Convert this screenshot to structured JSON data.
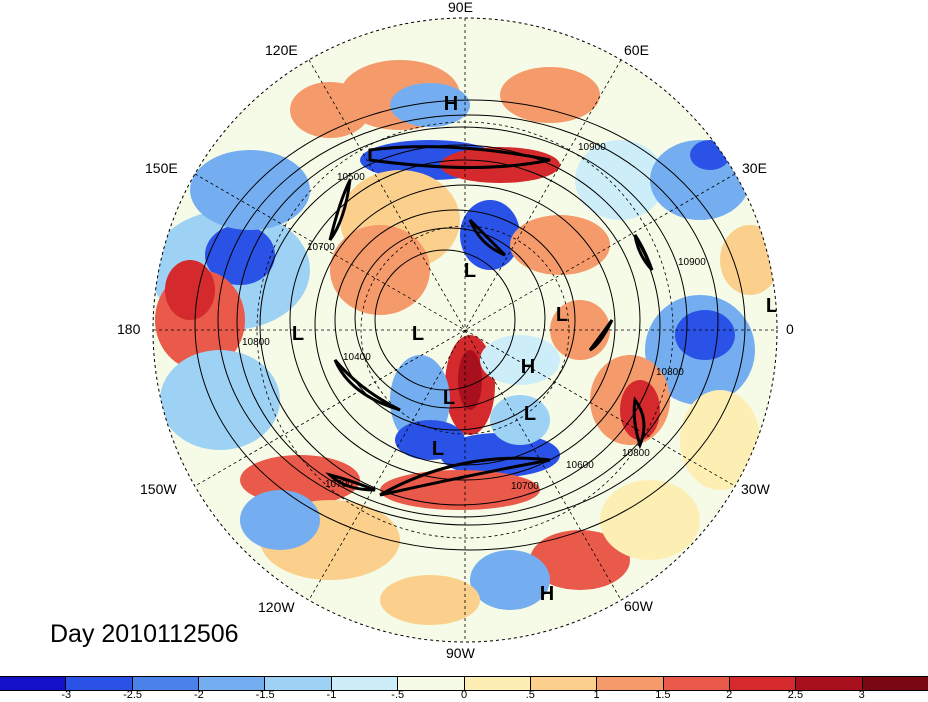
{
  "title": "Day 2010112506",
  "longitude_labels": [
    "90E",
    "60E",
    "30E",
    "0",
    "30W",
    "60W",
    "90W",
    "120W",
    "150W",
    "180",
    "150E",
    "120E"
  ],
  "contour_labels": [
    "10900",
    "10500",
    "10700",
    "10900",
    "10800",
    "10400",
    "10800",
    "10800",
    "10600",
    "10700",
    "10700"
  ],
  "pressure_centers": [
    "H",
    "L",
    "L",
    "L",
    "L",
    "H",
    "L",
    "L",
    "L",
    "L",
    "H"
  ],
  "colorbar": {
    "ticks": [
      "-3",
      "-2.5",
      "-2",
      "-1.5",
      "-1",
      "-.5",
      "0",
      ".5",
      "1",
      "1.5",
      "2",
      "2.5",
      "3"
    ],
    "colors": [
      "#1410c8",
      "#2a52e6",
      "#4a82ea",
      "#74aef0",
      "#9ed2f5",
      "#cdeef8",
      "#f6fbe7",
      "#fdeeb4",
      "#fbd08c",
      "#f59a6a",
      "#ea5a4a",
      "#d42a2e",
      "#a8101e",
      "#7a0812"
    ]
  }
}
